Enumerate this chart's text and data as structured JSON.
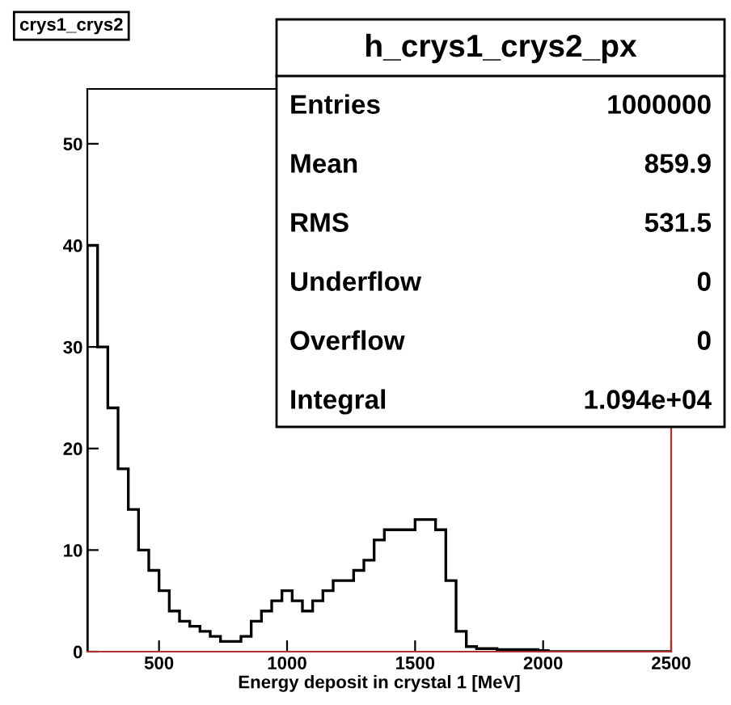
{
  "chart_data": {
    "type": "histogram",
    "title": "crys1_crys2",
    "subtitle": "h_crys1_crys2_px",
    "xlabel": "Energy deposit in crystal 1 [MeV]",
    "bins": [
      220,
      260,
      300,
      340,
      380,
      420,
      460,
      500,
      540,
      580,
      620,
      660,
      700,
      740,
      780,
      820,
      860,
      900,
      940,
      980,
      1020,
      1060,
      1100,
      1140,
      1180,
      1220,
      1260,
      1300,
      1340,
      1380,
      1420,
      1460,
      1500,
      1540,
      1580,
      1620,
      1660,
      1700,
      1740,
      1780,
      1820,
      1860,
      1900,
      1940,
      1980,
      2020,
      2060,
      2100,
      2140,
      2180,
      2220,
      2260,
      2300,
      2340,
      2380,
      2420,
      2460,
      2500
    ],
    "values": [
      40,
      30,
      24,
      18,
      14,
      10,
      8,
      6,
      4,
      3,
      2.5,
      2,
      1.5,
      1,
      1,
      1.5,
      3,
      4,
      5,
      6,
      5,
      4,
      5,
      6,
      7,
      7,
      8,
      9,
      11,
      12,
      12,
      12,
      13,
      13,
      12,
      7,
      2,
      0.5,
      0.3,
      0.3,
      0.2,
      0.2,
      0.2,
      0.2,
      0.1,
      0,
      0,
      0,
      0,
      0,
      0,
      0,
      0,
      0,
      0,
      0,
      0
    ],
    "color": "#000000",
    "xlim": [
      220,
      2500
    ],
    "xticks": [
      500,
      1000,
      1500,
      2000,
      2500
    ],
    "ylim": [
      0,
      55.4
    ],
    "yticks": [
      0,
      10,
      20,
      30,
      40,
      50
    ],
    "grid": false,
    "legend": false,
    "annotations": [
      "Entries",
      "1000000",
      "Mean",
      "859.9",
      "RMS",
      "531.5",
      "Underflow",
      "0",
      "Overflow",
      "0",
      "Integral",
      "1.094e+04"
    ]
  }
}
